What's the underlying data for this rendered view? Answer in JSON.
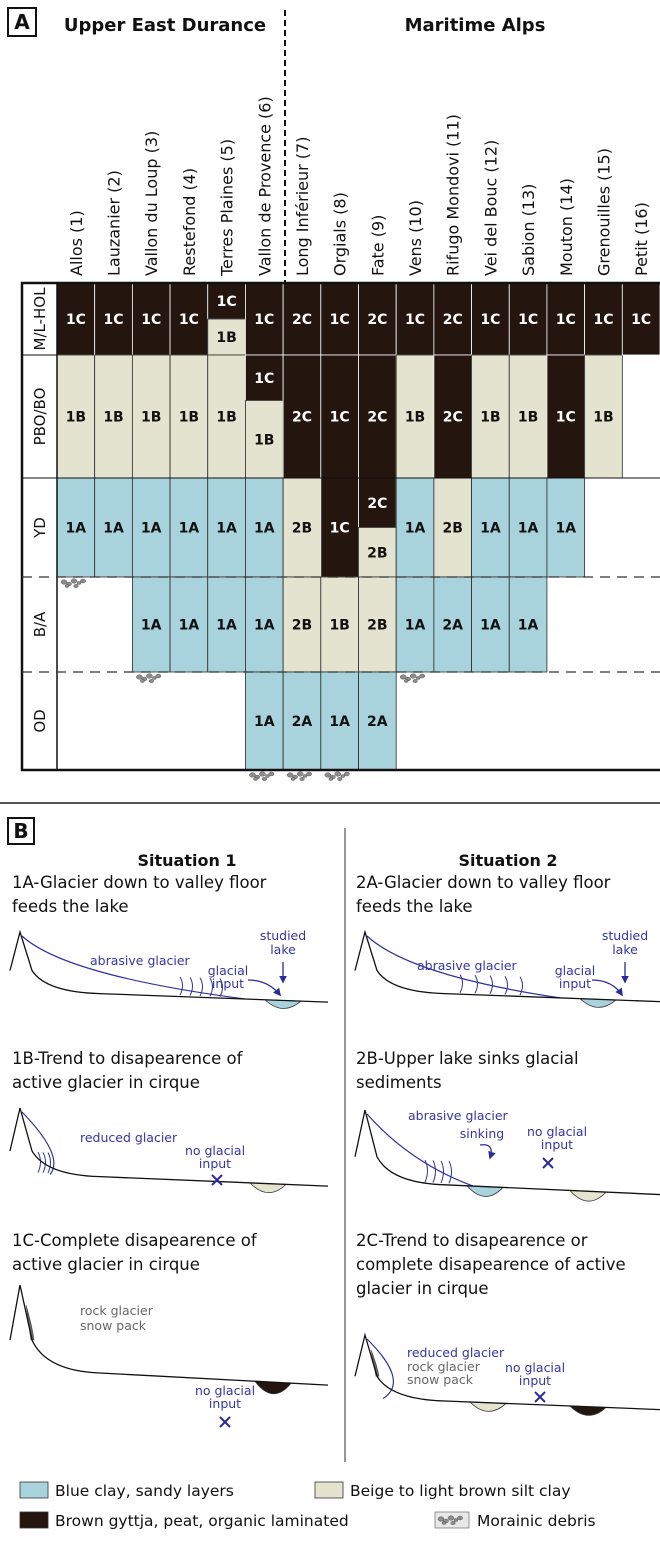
{
  "panel_a": {
    "label": "A",
    "regions": [
      "Upper East Durance",
      "Maritime Alps"
    ],
    "periods": [
      "M/L-HOL",
      "PBO/BO",
      "YD",
      "B/A",
      "OD"
    ],
    "sites": [
      {
        "name": "Allos (1)",
        "cells": [
          "1C",
          "1B",
          "1A"
        ]
      },
      {
        "name": "Lauzanier (2)",
        "cells": [
          "1C",
          "1B",
          "1A"
        ]
      },
      {
        "name": "Vallon du Loup (3)",
        "cells": [
          "1C",
          "1B",
          "1A",
          "1A"
        ]
      },
      {
        "name": "Restefond (4)",
        "cells": [
          "1C",
          "1B",
          "1A",
          "1A"
        ]
      },
      {
        "name": "Terres Plaines (5)",
        "cells": [
          "1C",
          "1B",
          "1B",
          "1A",
          "1A"
        ]
      },
      {
        "name": "Vallon de Provence (6)",
        "cells": [
          "1C",
          "1C",
          "1B",
          "1A",
          "1A",
          "1A"
        ]
      },
      {
        "name": "Long Inférieur (7)",
        "cells": [
          "2C",
          "2C",
          "2B",
          "2B",
          "2A"
        ]
      },
      {
        "name": "Orgials (8)",
        "cells": [
          "1C",
          "1C",
          "1C",
          "1B",
          "1A"
        ]
      },
      {
        "name": "Fate (9)",
        "cells": [
          "2C",
          "2C",
          "2C",
          "2B",
          "2B",
          "2A"
        ]
      },
      {
        "name": "Vens (10)",
        "cells": [
          "1C",
          "1B",
          "1A",
          "1A"
        ]
      },
      {
        "name": "Rifugo Mondovi (11)",
        "cells": [
          "2C",
          "2C",
          "2B",
          "2A"
        ]
      },
      {
        "name": "Vei del Bouc (12)",
        "cells": [
          "1C",
          "1B",
          "1A",
          "1A"
        ]
      },
      {
        "name": "Sabion (13)",
        "cells": [
          "1C",
          "1B",
          "1A",
          "1A"
        ]
      },
      {
        "name": "Mouton (14)",
        "cells": [
          "1C",
          "1C",
          "1A"
        ]
      },
      {
        "name": "Grenouilles (15)",
        "cells": [
          "1C",
          "1B"
        ]
      },
      {
        "name": "Petit (16)",
        "cells": [
          "1C"
        ]
      }
    ]
  },
  "panel_b": {
    "label": "B",
    "situations": [
      {
        "title": "Situation 1",
        "scenarios": [
          {
            "caption": [
              "1A-Glacier down to valley floor",
              "feeds the lake"
            ],
            "annotations": [
              "abrasive glacier",
              "studied",
              "lake",
              "glacial",
              "input"
            ]
          },
          {
            "caption": [
              "1B-Trend to disapearence of",
              "active glacier in cirque"
            ],
            "annotations": [
              "reduced glacier",
              "no glacial",
              "input"
            ]
          },
          {
            "caption": [
              "1C-Complete disapearence of",
              "active glacier in cirque"
            ],
            "annotations": [
              "rock glacier",
              "snow pack",
              "no glacial",
              "input"
            ]
          }
        ]
      },
      {
        "title": "Situation 2",
        "scenarios": [
          {
            "caption": [
              "2A-Glacier down to valley floor",
              "feeds the lake"
            ],
            "annotations": [
              "abrasive glacier",
              "studied",
              "lake",
              "glacial",
              "input"
            ]
          },
          {
            "caption": [
              "2B-Upper lake sinks glacial",
              "sediments"
            ],
            "annotations": [
              "abrasive glacier",
              "sinking",
              "no glacial",
              "input"
            ]
          },
          {
            "caption": [
              "2C-Trend to disapearence or",
              "complete disapearence of active",
              "glacier in cirque"
            ],
            "annotations": [
              "reduced glacier",
              "rock glacier",
              "snow pack",
              "no glacial",
              "input"
            ]
          }
        ]
      }
    ]
  },
  "legend": [
    "Blue clay, sandy layers",
    "Beige to light brown silt clay",
    "Brown gyttja, peat, organic laminated",
    "Morainic debris"
  ]
}
